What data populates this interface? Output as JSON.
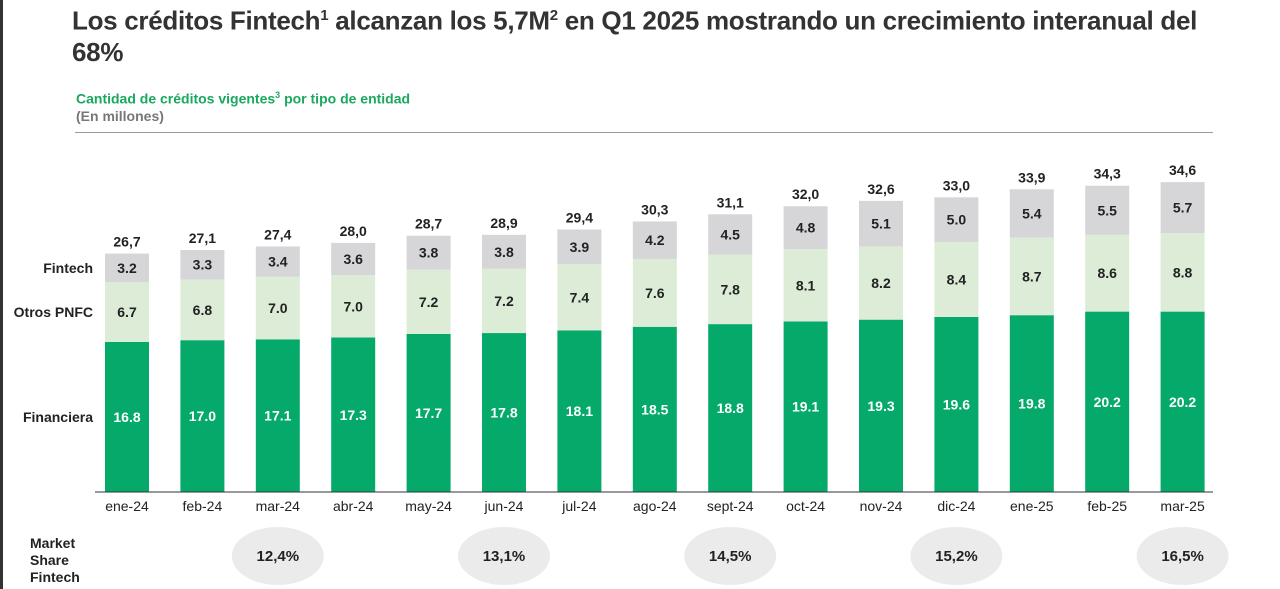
{
  "title": {
    "pre": "Los créditos Fintech",
    "sup1": "1",
    "mid": " alcanzan los 5,7M",
    "sup2": "2",
    "post": " en Q1 2025 mostrando un crecimiento interanual del 68%"
  },
  "subtitle": {
    "text": "Cantidad de créditos vigentes",
    "sup": "3",
    "post": " por tipo de entidad"
  },
  "unit": "(En millones)",
  "market_share_label": [
    "Market",
    "Share",
    "Fintech"
  ],
  "colors": {
    "financiera": "#05aa6a",
    "otros_pnfc": "#dcecd7",
    "fintech": "#d6d6d8",
    "ellipse": "#ebebeb"
  },
  "chart_data": {
    "type": "bar",
    "stacked": true,
    "categories": [
      "ene-24",
      "feb-24",
      "mar-24",
      "abr-24",
      "may-24",
      "jun-24",
      "jul-24",
      "ago-24",
      "sept-24",
      "oct-24",
      "nov-24",
      "dic-24",
      "ene-25",
      "feb-25",
      "mar-25"
    ],
    "series": [
      {
        "name": "Financiera",
        "values": [
          16.8,
          17.0,
          17.1,
          17.3,
          17.7,
          17.8,
          18.1,
          18.5,
          18.8,
          19.1,
          19.3,
          19.6,
          19.8,
          20.2,
          20.2
        ],
        "labels": [
          "16.8",
          "17.0",
          "17.1",
          "17.3",
          "17.7",
          "17.8",
          "18.1",
          "18.5",
          "18.8",
          "19.1",
          "19.3",
          "19.6",
          "19.8",
          "20.2",
          "20.2"
        ]
      },
      {
        "name": "Otros PNFC",
        "values": [
          6.7,
          6.8,
          7.0,
          7.0,
          7.2,
          7.2,
          7.4,
          7.6,
          7.8,
          8.1,
          8.2,
          8.4,
          8.7,
          8.6,
          8.8
        ],
        "labels": [
          "6.7",
          "6.8",
          "7.0",
          "7.0",
          "7.2",
          "7.2",
          "7.4",
          "7.6",
          "7.8",
          "8.1",
          "8.2",
          "8.4",
          "8.7",
          "8.6",
          "8.8"
        ]
      },
      {
        "name": "Fintech",
        "values": [
          3.2,
          3.3,
          3.4,
          3.6,
          3.8,
          3.8,
          3.9,
          4.2,
          4.5,
          4.8,
          5.1,
          5.0,
          5.4,
          5.5,
          5.7
        ],
        "labels": [
          "3.2",
          "3.3",
          "3.4",
          "3.6",
          "3.8",
          "3.8",
          "3.9",
          "4.2",
          "4.5",
          "4.8",
          "5.1",
          "5.0",
          "5.4",
          "5.5",
          "5.7"
        ]
      }
    ],
    "totals": [
      "26,7",
      "27,1",
      "27,4",
      "28,0",
      "28,7",
      "28,9",
      "29,4",
      "30,3",
      "31,1",
      "32,0",
      "32,6",
      "33,0",
      "33,9",
      "34,3",
      "34,6"
    ],
    "market_share": [
      {
        "category": "mar-24",
        "value": "12,4%"
      },
      {
        "category": "jun-24",
        "value": "13,1%"
      },
      {
        "category": "sept-24",
        "value": "14,5%"
      },
      {
        "category": "dic-24",
        "value": "15,2%"
      },
      {
        "category": "mar-25",
        "value": "16,5%"
      }
    ],
    "legend": "left",
    "grid": false
  }
}
